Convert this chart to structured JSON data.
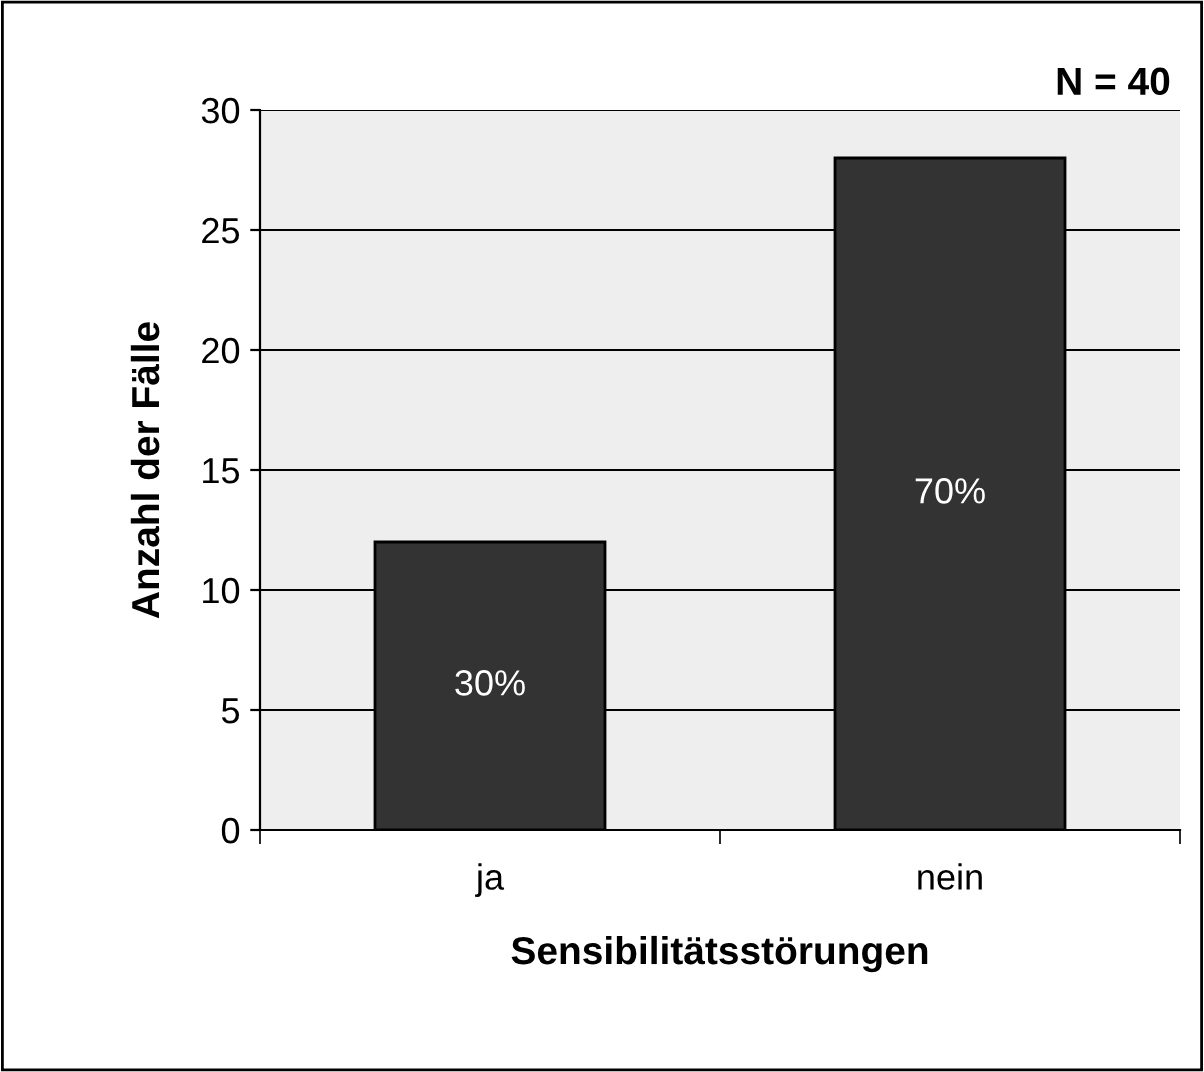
{
  "chart_data": {
    "type": "bar",
    "categories": [
      "ja",
      "nein"
    ],
    "values": [
      12,
      28
    ],
    "color": "#333333",
    "xlabel": "Sensibilitätsstörungen",
    "ylabel": "Anzahl der Fälle",
    "annotations": [
      "N = 40",
      "30%",
      "70%"
    ],
    "ylim": [
      0,
      30
    ],
    "yticks": [
      0,
      5,
      10,
      15,
      20,
      25,
      30
    ],
    "grid": "y",
    "legend": false
  }
}
